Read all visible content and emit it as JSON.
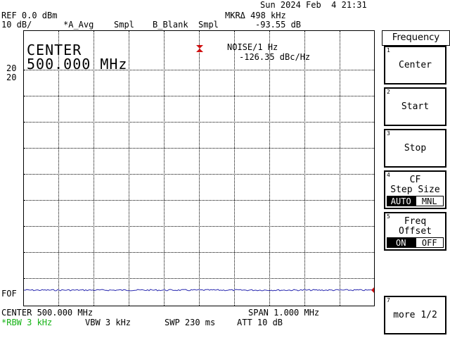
{
  "status": {
    "datetime": "Sun 2024 Feb  4 21:31",
    "ref": "REF 0.0 dBm",
    "scale": "10 dB/",
    "trace_mode": "*A_Avg",
    "sample1": "Smpl",
    "trace_b": "B_Blank",
    "sample2": "Smpl",
    "marker_label": "MKRΔ 498 kHz",
    "marker_value": "-93.55 dB",
    "noise_label": "NOISE/1 Hz",
    "noise_value": "-126.35 dBc/Hz",
    "ref_level_a": "20",
    "ref_level_b": "20",
    "fof": "FOF",
    "center_big_label": "CENTER",
    "center_big_value": "500.000 MHz"
  },
  "footer": {
    "center": "CENTER 500.000 MHz",
    "span": "SPAN 1.000 MHz",
    "rbw": "*RBW 3 kHz",
    "vbw": "VBW 3 kHz",
    "swp": "SWP 230 ms",
    "att": "ATT 10 dB"
  },
  "softkeys": {
    "title": "Frequency",
    "keys": [
      {
        "num": "1",
        "label": "Center"
      },
      {
        "num": "2",
        "label": "Start"
      },
      {
        "num": "3",
        "label": "Stop"
      },
      {
        "num": "4",
        "label_a": "CF",
        "label_b": "Step Size",
        "on": "AUTO",
        "off": "MNL"
      },
      {
        "num": "5",
        "label_a": "Freq",
        "label_b": "Offset",
        "on": "ON",
        "off": "OFF"
      },
      {
        "num": "7",
        "label": "more 1/2"
      }
    ]
  },
  "colors": {
    "trace": "#2b2bb0",
    "marker": "#d01010",
    "rbw_highlight": "#16b316"
  }
}
